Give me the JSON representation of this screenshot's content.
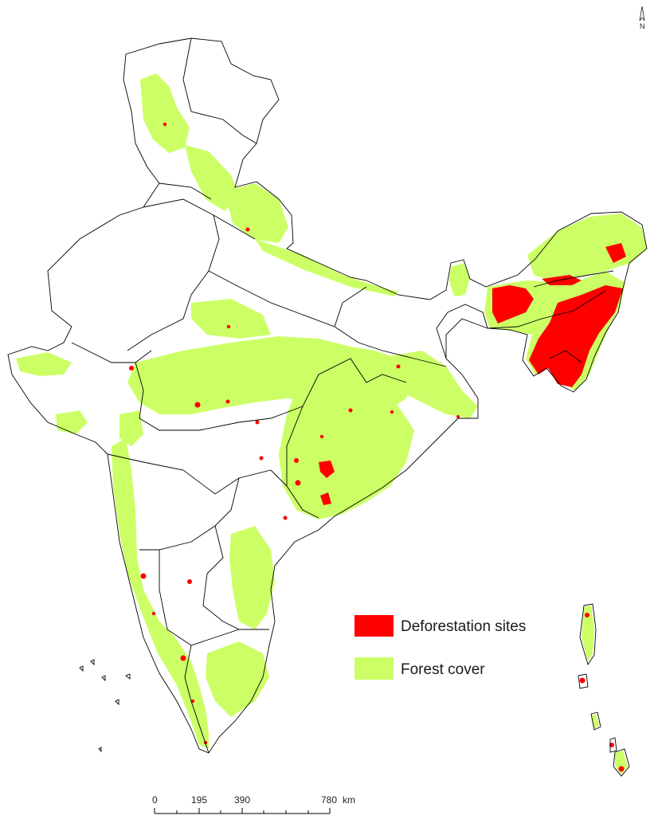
{
  "colors": {
    "deforestation": "#ff0000",
    "forest": "#ccff66",
    "boundary": "#000000",
    "background": "#ffffff"
  },
  "legend": {
    "deforestation_label": "Deforestation sites",
    "forest_label": "Forest cover"
  },
  "north_arrow": {
    "label": "N",
    "icon": "north-arrow-icon"
  },
  "scale_bar": {
    "ticks": [
      "0",
      "195",
      "390",
      "780"
    ],
    "unit": "km"
  }
}
